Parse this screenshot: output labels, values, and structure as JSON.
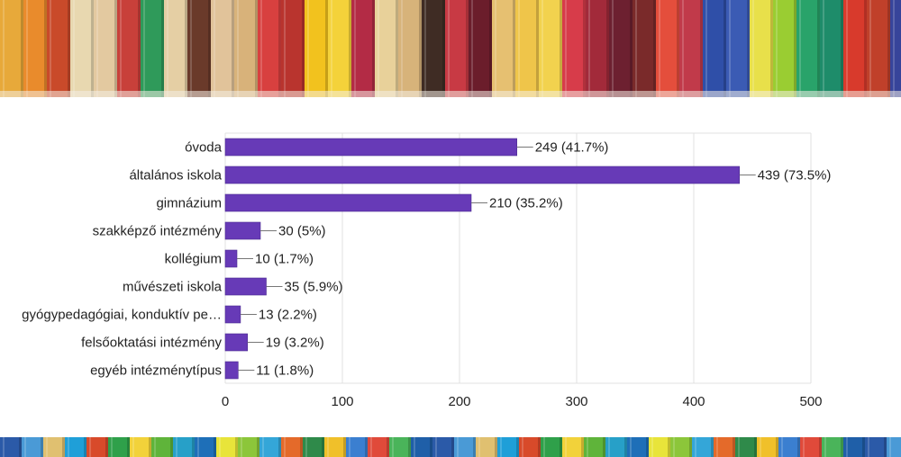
{
  "chart_data": {
    "type": "bar",
    "orientation": "horizontal",
    "title": "",
    "xlabel": "",
    "ylabel": "",
    "categories": [
      "óvoda",
      "általános iskola",
      "gimnázium",
      "szakképző intézmény",
      "kollégium",
      "művészeti iskola",
      "gyógypedagógiai, konduktív pe…",
      "felsőoktatási intézmény",
      "egyéb intézménytípus"
    ],
    "values": [
      249,
      439,
      210,
      30,
      10,
      35,
      13,
      19,
      11
    ],
    "data_labels": [
      "249 (41.7%)",
      "439 (73.5%)",
      "210 (35.2%)",
      "30 (5%)",
      "10 (1.7%)",
      "35 (5.9%)",
      "13 (2.2%)",
      "19 (3.2%)",
      "11 (1.8%)"
    ],
    "xlim": [
      0,
      500
    ],
    "xticks": [
      0,
      100,
      200,
      300,
      400,
      500
    ],
    "grid": true,
    "legend": "none"
  },
  "colors": {
    "bar": "#673ab7",
    "bar_border": "#4a2a8f",
    "grid": "#e0e0e0",
    "text": "#222222",
    "leader": "#777777"
  },
  "decoration": {
    "top_band": "colored-pencils-photo",
    "bottom_band": "colored-pencils-photo"
  }
}
